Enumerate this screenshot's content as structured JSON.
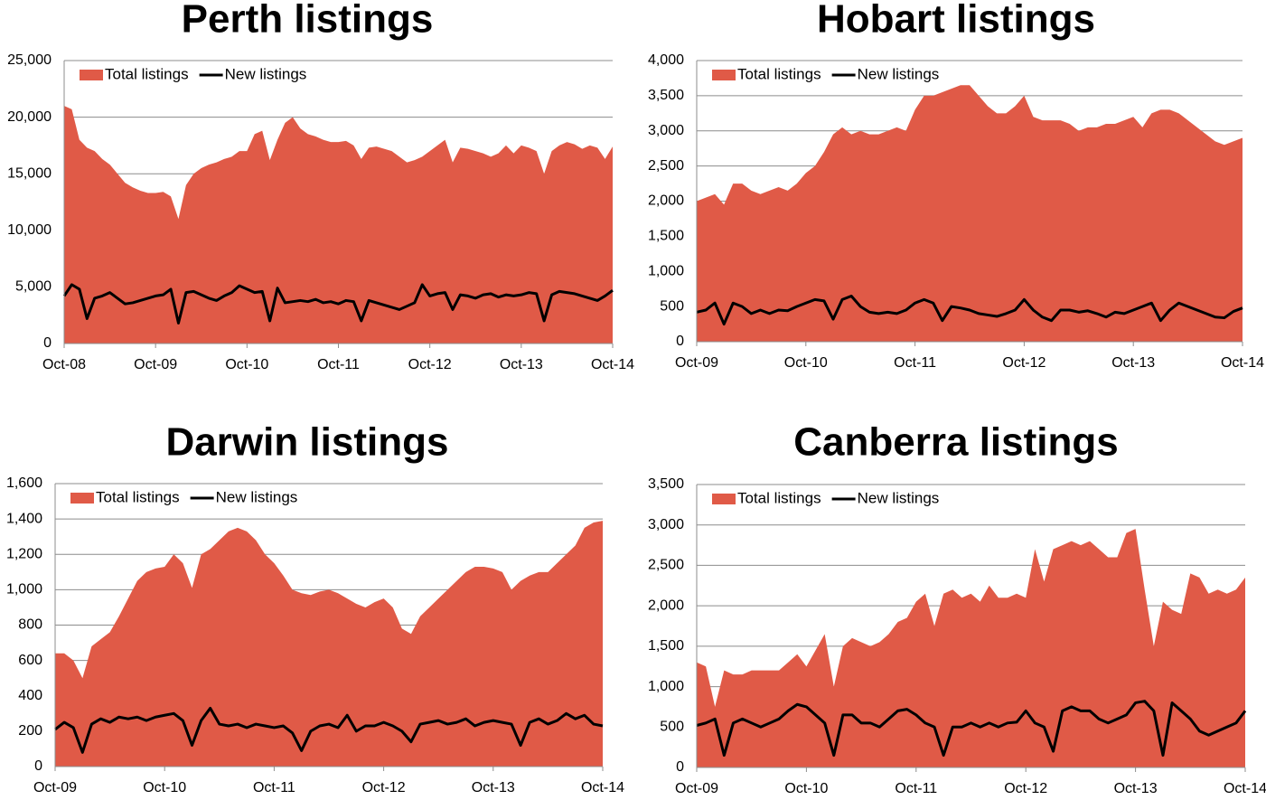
{
  "chart_data": [
    {
      "type": "area",
      "title": "Perth listings",
      "categories": [
        "Oct-08",
        null,
        null,
        null,
        null,
        null,
        null,
        null,
        null,
        null,
        null,
        null,
        "Oct-09",
        null,
        null,
        null,
        null,
        null,
        null,
        null,
        null,
        null,
        null,
        null,
        "Oct-10",
        null,
        null,
        null,
        null,
        null,
        null,
        null,
        null,
        null,
        null,
        null,
        "Oct-11",
        null,
        null,
        null,
        null,
        null,
        null,
        null,
        null,
        null,
        null,
        null,
        "Oct-12",
        null,
        null,
        null,
        null,
        null,
        null,
        null,
        null,
        null,
        null,
        null,
        "Oct-13",
        null,
        null,
        null,
        null,
        null,
        null,
        null,
        null,
        null,
        null,
        null,
        "Oct-14"
      ],
      "series": [
        {
          "name": "Total listings",
          "color": "#e05a47",
          "style": "area",
          "values": [
            21000,
            20700,
            18000,
            17300,
            17000,
            16300,
            15800,
            15000,
            14200,
            13800,
            13500,
            13300,
            13300,
            13400,
            13000,
            11000,
            14000,
            15000,
            15500,
            15800,
            16000,
            16300,
            16500,
            17000,
            17000,
            18500,
            18800,
            16200,
            18000,
            19500,
            20000,
            19000,
            18500,
            18300,
            18000,
            17800,
            17800,
            17900,
            17500,
            16300,
            17300,
            17400,
            17200,
            17000,
            16500,
            16000,
            16200,
            16500,
            17000,
            17500,
            18000,
            16000,
            17300,
            17200,
            17000,
            16800,
            16500,
            16800,
            17500,
            16800,
            17500,
            17300,
            17000,
            15000,
            17000,
            17500,
            17800,
            17600,
            17200,
            17500,
            17300,
            16300,
            17400
          ]
        },
        {
          "name": "New listings",
          "color": "#000000",
          "style": "line",
          "values": [
            4200,
            5200,
            4800,
            2200,
            4000,
            4200,
            4500,
            4000,
            3500,
            3600,
            3800,
            4000,
            4200,
            4300,
            4800,
            1800,
            4500,
            4600,
            4300,
            4000,
            3800,
            4200,
            4500,
            5100,
            4800,
            4500,
            4600,
            2000,
            4900,
            3600,
            3700,
            3800,
            3700,
            3900,
            3600,
            3700,
            3500,
            3800,
            3700,
            2000,
            3800,
            3600,
            3400,
            3200,
            3000,
            3300,
            3600,
            5200,
            4200,
            4400,
            4500,
            3000,
            4300,
            4200,
            4000,
            4300,
            4400,
            4100,
            4300,
            4200,
            4300,
            4500,
            4400,
            2000,
            4300,
            4600,
            4500,
            4400,
            4200,
            4000,
            3800,
            4200,
            4700
          ]
        }
      ],
      "ylim": [
        0,
        25000
      ],
      "yticks": [
        0,
        {
          "value": 5000,
          "label": "5,000"
        },
        {
          "value": 10000,
          "label": "10,000"
        },
        {
          "value": 15000,
          "label": "15,000"
        },
        {
          "value": 20000,
          "label": "20,000"
        },
        {
          "value": 25000,
          "label": "25,000"
        }
      ],
      "grid": true
    },
    {
      "type": "area",
      "title": "Hobart listings",
      "categories": [
        "Oct-09",
        null,
        null,
        null,
        null,
        null,
        null,
        null,
        null,
        null,
        null,
        null,
        "Oct-10",
        null,
        null,
        null,
        null,
        null,
        null,
        null,
        null,
        null,
        null,
        null,
        "Oct-11",
        null,
        null,
        null,
        null,
        null,
        null,
        null,
        null,
        null,
        null,
        null,
        "Oct-12",
        null,
        null,
        null,
        null,
        null,
        null,
        null,
        null,
        null,
        null,
        null,
        "Oct-13",
        null,
        null,
        null,
        null,
        null,
        null,
        null,
        null,
        null,
        null,
        null,
        "Oct-14"
      ],
      "series": [
        {
          "name": "Total listings",
          "color": "#e05a47",
          "style": "area",
          "values": [
            2000,
            2050,
            2100,
            1950,
            2250,
            2250,
            2150,
            2100,
            2150,
            2200,
            2150,
            2250,
            2400,
            2500,
            2700,
            2950,
            3050,
            2950,
            3000,
            2950,
            2950,
            3000,
            3050,
            3000,
            3300,
            3500,
            3500,
            3550,
            3600,
            3650,
            3650,
            3500,
            3350,
            3250,
            3250,
            3350,
            3500,
            3200,
            3150,
            3150,
            3150,
            3100,
            3000,
            3050,
            3050,
            3100,
            3100,
            3150,
            3200,
            3050,
            3250,
            3300,
            3300,
            3250,
            3150,
            3050,
            2950,
            2850,
            2800,
            2850,
            2900
          ]
        },
        {
          "name": "New listings",
          "color": "#000000",
          "style": "line",
          "values": [
            420,
            450,
            550,
            250,
            550,
            500,
            400,
            450,
            400,
            450,
            440,
            500,
            550,
            600,
            580,
            320,
            600,
            650,
            500,
            420,
            400,
            420,
            400,
            450,
            550,
            600,
            550,
            300,
            500,
            480,
            450,
            400,
            380,
            360,
            400,
            450,
            600,
            450,
            350,
            300,
            450,
            450,
            420,
            440,
            400,
            350,
            420,
            400,
            450,
            500,
            550,
            300,
            450,
            550,
            500,
            450,
            400,
            350,
            340,
            430,
            480
          ]
        }
      ],
      "ylim": [
        0,
        4000
      ],
      "yticks": [
        0,
        500,
        {
          "value": 1000,
          "label": "1,000"
        },
        {
          "value": 1500,
          "label": "1,500"
        },
        {
          "value": 2000,
          "label": "2,000"
        },
        {
          "value": 2500,
          "label": "2,500"
        },
        {
          "value": 3000,
          "label": "3,000"
        },
        {
          "value": 3500,
          "label": "3,500"
        },
        {
          "value": 4000,
          "label": "4,000"
        }
      ],
      "grid": true
    },
    {
      "type": "area",
      "title": "Darwin listings",
      "categories": [
        "Oct-09",
        null,
        null,
        null,
        null,
        null,
        null,
        null,
        null,
        null,
        null,
        null,
        "Oct-10",
        null,
        null,
        null,
        null,
        null,
        null,
        null,
        null,
        null,
        null,
        null,
        "Oct-11",
        null,
        null,
        null,
        null,
        null,
        null,
        null,
        null,
        null,
        null,
        null,
        "Oct-12",
        null,
        null,
        null,
        null,
        null,
        null,
        null,
        null,
        null,
        null,
        null,
        "Oct-13",
        null,
        null,
        null,
        null,
        null,
        null,
        null,
        null,
        null,
        null,
        null,
        "Oct-14"
      ],
      "series": [
        {
          "name": "Total listings",
          "color": "#e05a47",
          "style": "area",
          "values": [
            640,
            640,
            600,
            500,
            680,
            720,
            760,
            850,
            950,
            1050,
            1100,
            1120,
            1130,
            1200,
            1150,
            1010,
            1200,
            1230,
            1280,
            1330,
            1350,
            1330,
            1280,
            1200,
            1150,
            1080,
            1000,
            980,
            970,
            990,
            1000,
            980,
            950,
            920,
            900,
            930,
            950,
            900,
            780,
            750,
            850,
            900,
            950,
            1000,
            1050,
            1100,
            1130,
            1130,
            1120,
            1100,
            1000,
            1050,
            1080,
            1100,
            1100,
            1150,
            1200,
            1250,
            1350,
            1380,
            1390
          ]
        },
        {
          "name": "New listings",
          "color": "#000000",
          "style": "line",
          "values": [
            210,
            250,
            220,
            80,
            240,
            270,
            250,
            280,
            270,
            280,
            260,
            280,
            290,
            300,
            260,
            120,
            260,
            330,
            240,
            230,
            240,
            220,
            240,
            230,
            220,
            230,
            190,
            90,
            200,
            230,
            240,
            220,
            290,
            200,
            230,
            230,
            250,
            230,
            200,
            140,
            240,
            250,
            260,
            240,
            250,
            270,
            230,
            250,
            260,
            250,
            240,
            120,
            250,
            270,
            240,
            260,
            300,
            270,
            290,
            240,
            230
          ]
        }
      ],
      "ylim": [
        0,
        1600
      ],
      "yticks": [
        0,
        200,
        400,
        600,
        800,
        {
          "value": 1000,
          "label": "1,000"
        },
        {
          "value": 1200,
          "label": "1,200"
        },
        {
          "value": 1400,
          "label": "1,400"
        },
        {
          "value": 1600,
          "label": "1,600"
        }
      ],
      "grid": true
    },
    {
      "type": "area",
      "title": "Canberra listings",
      "categories": [
        "Oct-09",
        null,
        null,
        null,
        null,
        null,
        null,
        null,
        null,
        null,
        null,
        null,
        "Oct-10",
        null,
        null,
        null,
        null,
        null,
        null,
        null,
        null,
        null,
        null,
        null,
        "Oct-11",
        null,
        null,
        null,
        null,
        null,
        null,
        null,
        null,
        null,
        null,
        null,
        "Oct-12",
        null,
        null,
        null,
        null,
        null,
        null,
        null,
        null,
        null,
        null,
        null,
        "Oct-13",
        null,
        null,
        null,
        null,
        null,
        null,
        null,
        null,
        null,
        null,
        null,
        "Oct-14"
      ],
      "series": [
        {
          "name": "Total listings",
          "color": "#e05a47",
          "style": "area",
          "values": [
            1300,
            1250,
            750,
            1200,
            1150,
            1150,
            1200,
            1200,
            1200,
            1200,
            1300,
            1400,
            1250,
            1450,
            1650,
            1000,
            1500,
            1600,
            1550,
            1500,
            1550,
            1650,
            1800,
            1850,
            2050,
            2150,
            1750,
            2150,
            2200,
            2100,
            2150,
            2050,
            2250,
            2100,
            2100,
            2150,
            2100,
            2700,
            2300,
            2700,
            2750,
            2800,
            2750,
            2800,
            2700,
            2600,
            2600,
            2900,
            2950,
            2200,
            1500,
            2050,
            1950,
            1900,
            2400,
            2350,
            2150,
            2200,
            2150,
            2200,
            2350
          ]
        },
        {
          "name": "New listings",
          "color": "#000000",
          "style": "line",
          "values": [
            520,
            550,
            600,
            150,
            550,
            600,
            550,
            500,
            550,
            600,
            700,
            780,
            750,
            650,
            550,
            150,
            650,
            650,
            550,
            550,
            500,
            600,
            700,
            720,
            650,
            550,
            500,
            150,
            500,
            500,
            550,
            500,
            550,
            500,
            550,
            560,
            700,
            550,
            500,
            200,
            700,
            750,
            700,
            700,
            600,
            550,
            600,
            650,
            800,
            820,
            700,
            150,
            800,
            700,
            600,
            450,
            400,
            450,
            500,
            550,
            700
          ]
        }
      ],
      "ylim": [
        0,
        3500
      ],
      "yticks": [
        0,
        500,
        {
          "value": 1000,
          "label": "1,000"
        },
        {
          "value": 1500,
          "label": "1,500"
        },
        {
          "value": 2000,
          "label": "2,000"
        },
        {
          "value": 2500,
          "label": "2,500"
        },
        {
          "value": 3000,
          "label": "3,000"
        },
        {
          "value": 3500,
          "label": "3,500"
        }
      ],
      "grid": true
    }
  ]
}
